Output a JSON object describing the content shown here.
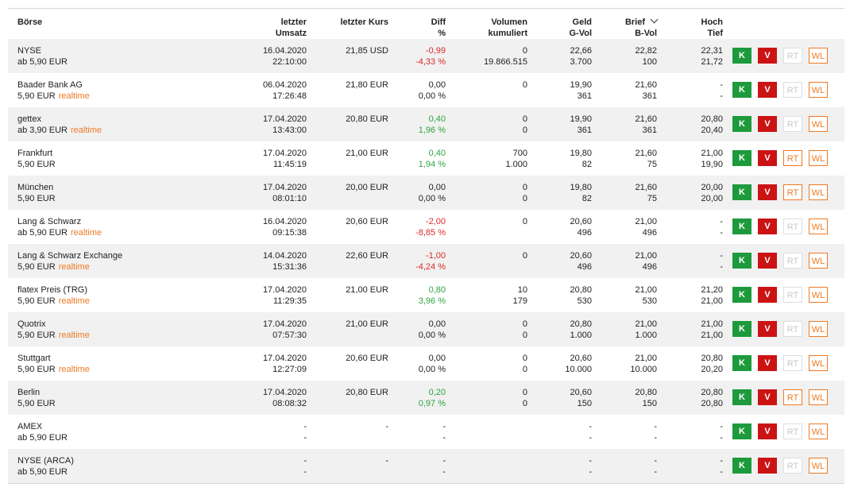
{
  "columns": {
    "boerse": "Börse",
    "letzter_umsatz": [
      "letzter",
      "Umsatz"
    ],
    "letzter_kurs": "letzter Kurs",
    "diff": [
      "Diff",
      "%"
    ],
    "volumen": [
      "Volumen",
      "kumuliert"
    ],
    "geld": [
      "Geld",
      "G-Vol"
    ],
    "brief": [
      "Brief",
      "B-Vol"
    ],
    "hoch": [
      "Hoch",
      "Tief"
    ]
  },
  "buttons": {
    "k": "K",
    "v": "V",
    "rt": "RT",
    "wl": "WL"
  },
  "realtime_label": "realtime",
  "rows": [
    {
      "name": "NYSE",
      "fee": "ab 5,90 EUR",
      "realtime": false,
      "date": "16.04.2020",
      "time": "22:10:00",
      "kurs": "21,85 USD",
      "diff": "-0,99",
      "diff_pct": "-4,33 %",
      "trend": "neg",
      "vol": "0",
      "vol_cum": "19.866.515",
      "geld": "22,66",
      "gvol": "3.700",
      "brief": "22,82",
      "bvol": "100",
      "hoch": "22,31",
      "tief": "21,72",
      "rt_enabled": false
    },
    {
      "name": "Baader Bank AG",
      "fee": "5,90 EUR",
      "realtime": true,
      "date": "06.04.2020",
      "time": "17:26:48",
      "kurs": "21,80 EUR",
      "diff": "0,00",
      "diff_pct": "0,00 %",
      "trend": "neutral",
      "vol": "0",
      "vol_cum": "",
      "geld": "19,90",
      "gvol": "361",
      "brief": "21,60",
      "bvol": "361",
      "hoch": "-",
      "tief": "-",
      "rt_enabled": false
    },
    {
      "name": "gettex",
      "fee": "ab 3,90 EUR",
      "realtime": true,
      "date": "17.04.2020",
      "time": "13:43:00",
      "kurs": "20,80 EUR",
      "diff": "0,40",
      "diff_pct": "1,96 %",
      "trend": "pos",
      "vol": "0",
      "vol_cum": "0",
      "geld": "19,90",
      "gvol": "361",
      "brief": "21,60",
      "bvol": "361",
      "hoch": "20,80",
      "tief": "20,40",
      "rt_enabled": false
    },
    {
      "name": "Frankfurt",
      "fee": "5,90 EUR",
      "realtime": false,
      "date": "17.04.2020",
      "time": "11:45:19",
      "kurs": "21,00 EUR",
      "diff": "0,40",
      "diff_pct": "1,94 %",
      "trend": "pos",
      "vol": "700",
      "vol_cum": "1.000",
      "geld": "19,80",
      "gvol": "82",
      "brief": "21,60",
      "bvol": "75",
      "hoch": "21,00",
      "tief": "19,90",
      "rt_enabled": true
    },
    {
      "name": "München",
      "fee": "5,90 EUR",
      "realtime": false,
      "date": "17.04.2020",
      "time": "08:01:10",
      "kurs": "20,00 EUR",
      "diff": "0,00",
      "diff_pct": "0,00 %",
      "trend": "neutral",
      "vol": "0",
      "vol_cum": "0",
      "geld": "19,80",
      "gvol": "82",
      "brief": "21,60",
      "bvol": "75",
      "hoch": "20,00",
      "tief": "20,00",
      "rt_enabled": true
    },
    {
      "name": "Lang & Schwarz",
      "fee": "ab 5,90 EUR",
      "realtime": true,
      "date": "16.04.2020",
      "time": "09:15:38",
      "kurs": "20,60 EUR",
      "diff": "-2,00",
      "diff_pct": "-8,85 %",
      "trend": "neg",
      "vol": "0",
      "vol_cum": "",
      "geld": "20,60",
      "gvol": "496",
      "brief": "21,00",
      "bvol": "496",
      "hoch": "-",
      "tief": "-",
      "rt_enabled": false
    },
    {
      "name": "Lang & Schwarz Exchange",
      "fee": "5,90 EUR",
      "realtime": true,
      "date": "14.04.2020",
      "time": "15:31:36",
      "kurs": "22,60 EUR",
      "diff": "-1,00",
      "diff_pct": "-4,24 %",
      "trend": "neg",
      "vol": "0",
      "vol_cum": "",
      "geld": "20,60",
      "gvol": "496",
      "brief": "21,00",
      "bvol": "496",
      "hoch": "-",
      "tief": "-",
      "rt_enabled": false
    },
    {
      "name": "flatex Preis (TRG)",
      "fee": "5,90 EUR",
      "realtime": true,
      "date": "17.04.2020",
      "time": "11:29:35",
      "kurs": "21,00 EUR",
      "diff": "0,80",
      "diff_pct": "3,96 %",
      "trend": "pos",
      "vol": "10",
      "vol_cum": "179",
      "geld": "20,80",
      "gvol": "530",
      "brief": "21,00",
      "bvol": "530",
      "hoch": "21,20",
      "tief": "21,00",
      "rt_enabled": false
    },
    {
      "name": "Quotrix",
      "fee": "5,90 EUR",
      "realtime": true,
      "date": "17.04.2020",
      "time": "07:57:30",
      "kurs": "21,00 EUR",
      "diff": "0,00",
      "diff_pct": "0,00 %",
      "trend": "neutral",
      "vol": "0",
      "vol_cum": "0",
      "geld": "20,80",
      "gvol": "1.000",
      "brief": "21,00",
      "bvol": "1.000",
      "hoch": "21,00",
      "tief": "21,00",
      "rt_enabled": false
    },
    {
      "name": "Stuttgart",
      "fee": "5,90 EUR",
      "realtime": true,
      "date": "17.04.2020",
      "time": "12:27:09",
      "kurs": "20,60 EUR",
      "diff": "0,00",
      "diff_pct": "0,00 %",
      "trend": "neutral",
      "vol": "0",
      "vol_cum": "0",
      "geld": "20,60",
      "gvol": "10.000",
      "brief": "21,00",
      "bvol": "10.000",
      "hoch": "20,80",
      "tief": "20,20",
      "rt_enabled": false
    },
    {
      "name": "Berlin",
      "fee": "5,90 EUR",
      "realtime": false,
      "date": "17.04.2020",
      "time": "08:08:32",
      "kurs": "20,80 EUR",
      "diff": "0,20",
      "diff_pct": "0,97 %",
      "trend": "pos",
      "vol": "0",
      "vol_cum": "0",
      "geld": "20,60",
      "gvol": "150",
      "brief": "20,80",
      "bvol": "150",
      "hoch": "20,80",
      "tief": "20,80",
      "rt_enabled": true
    },
    {
      "name": "AMEX",
      "fee": "ab 5,90 EUR",
      "realtime": false,
      "date": "-",
      "time": "-",
      "kurs": "-",
      "diff": "-",
      "diff_pct": "-",
      "trend": "neutral",
      "vol": "",
      "vol_cum": "",
      "geld": "-",
      "gvol": "-",
      "brief": "-",
      "bvol": "-",
      "hoch": "-",
      "tief": "-",
      "rt_enabled": false
    },
    {
      "name": "NYSE (ARCA)",
      "fee": "ab 5,90 EUR",
      "realtime": false,
      "date": "-",
      "time": "-",
      "kurs": "-",
      "diff": "-",
      "diff_pct": "-",
      "trend": "neutral",
      "vol": "",
      "vol_cum": "",
      "geld": "-",
      "gvol": "-",
      "brief": "-",
      "bvol": "-",
      "hoch": "-",
      "tief": "-",
      "rt_enabled": false
    }
  ]
}
